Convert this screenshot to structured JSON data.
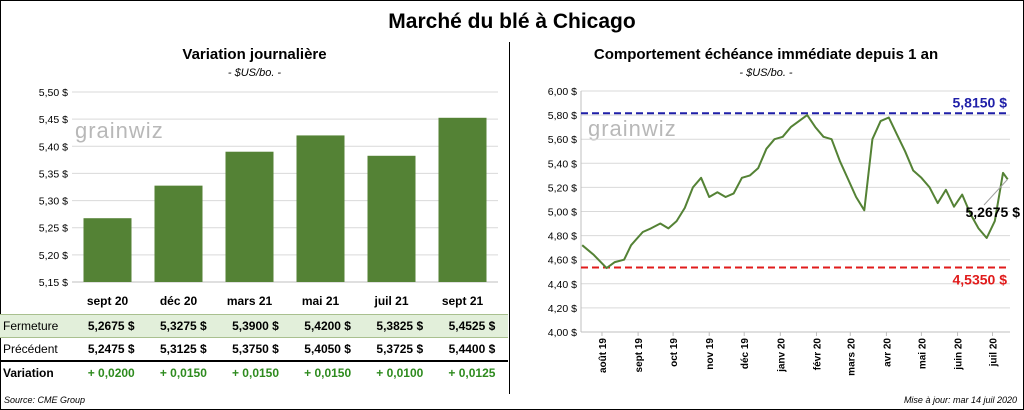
{
  "title": "Marché du blé à Chicago",
  "source": "Source: CME Group",
  "update": "Mise à jour: mar 14 juil 2020",
  "watermark": "grainwiz",
  "colors": {
    "bar": "#548235",
    "line": "#548235",
    "upper": "#1f1fa8",
    "lower": "#e01b1b"
  },
  "chart_data": [
    {
      "type": "bar",
      "title": "Variation  journalière",
      "unit": "- $US/bo. -",
      "categories": [
        "sept 20",
        "déc 20",
        "mars 21",
        "mai 21",
        "juil 21",
        "sept 21"
      ],
      "values": [
        5.2675,
        5.3275,
        5.39,
        5.42,
        5.3825,
        5.4525
      ],
      "ylim": [
        5.15,
        5.5
      ],
      "yticks": [
        "5,15 $",
        "5,20 $",
        "5,25 $",
        "5,30 $",
        "5,35 $",
        "5,40 $",
        "5,45 $",
        "5,50 $"
      ],
      "grid": true,
      "table": {
        "rows": [
          {
            "label": "Fermeture",
            "values": [
              "5,2675  $",
              "5,3275  $",
              "5,3900  $",
              "5,4200  $",
              "5,3825  $",
              "5,4525  $"
            ]
          },
          {
            "label": "Précédent",
            "values": [
              "5,2475  $",
              "5,3125  $",
              "5,3750  $",
              "5,4050  $",
              "5,3725  $",
              "5,4400  $"
            ]
          },
          {
            "label": "Variation",
            "values": [
              "+ 0,0200",
              "+ 0,0150",
              "+ 0,0150",
              "+ 0,0150",
              "+ 0,0100",
              "+ 0,0125"
            ]
          }
        ]
      }
    },
    {
      "type": "line",
      "title": "Comportement  échéance immédiate depuis 1 an",
      "unit": "- $US/bo. -",
      "ylim": [
        4.0,
        6.0
      ],
      "yticks": [
        "4,00 $",
        "4,20 $",
        "4,40 $",
        "4,60 $",
        "4,80 $",
        "5,00 $",
        "5,20 $",
        "5,40 $",
        "5,60 $",
        "5,80 $",
        "6,00 $"
      ],
      "xticks": [
        "août 19",
        "sept 19",
        "oct 19",
        "nov 19",
        "déc 19",
        "janv 20",
        "févr 20",
        "mars 20",
        "avr 20",
        "mai 20",
        "juin 20",
        "juil 20"
      ],
      "grid": true,
      "x": [
        "2019-07-15",
        "2019-07-25",
        "2019-08-05",
        "2019-08-12",
        "2019-08-20",
        "2019-08-26",
        "2019-09-05",
        "2019-09-12",
        "2019-09-20",
        "2019-09-27",
        "2019-10-04",
        "2019-10-11",
        "2019-10-18",
        "2019-10-25",
        "2019-11-01",
        "2019-11-08",
        "2019-11-15",
        "2019-11-22",
        "2019-11-29",
        "2019-12-06",
        "2019-12-13",
        "2019-12-20",
        "2019-12-27",
        "2020-01-03",
        "2020-01-10",
        "2020-01-17",
        "2020-01-24",
        "2020-01-31",
        "2020-02-07",
        "2020-02-14",
        "2020-02-21",
        "2020-02-28",
        "2020-03-06",
        "2020-03-13",
        "2020-03-20",
        "2020-03-27",
        "2020-04-03",
        "2020-04-10",
        "2020-04-17",
        "2020-04-24",
        "2020-05-01",
        "2020-05-08",
        "2020-05-15",
        "2020-05-22",
        "2020-05-29",
        "2020-06-05",
        "2020-06-12",
        "2020-06-19",
        "2020-06-26",
        "2020-07-03",
        "2020-07-10",
        "2020-07-14"
      ],
      "series": [
        {
          "values": [
            4.72,
            4.64,
            4.53,
            4.58,
            4.6,
            4.72,
            4.83,
            4.86,
            4.9,
            4.86,
            4.92,
            5.03,
            5.2,
            5.28,
            5.12,
            5.16,
            5.12,
            5.15,
            5.28,
            5.3,
            5.36,
            5.52,
            5.6,
            5.62,
            5.7,
            5.75,
            5.8,
            5.7,
            5.62,
            5.6,
            5.42,
            5.27,
            5.12,
            5.01,
            5.6,
            5.75,
            5.78,
            5.64,
            5.5,
            5.34,
            5.28,
            5.2,
            5.07,
            5.18,
            5.04,
            5.14,
            4.98,
            4.86,
            4.78,
            4.92,
            5.32,
            5.2675
          ]
        }
      ],
      "hlines": [
        {
          "value": 5.815,
          "label": "5,8150 $",
          "style": "upper"
        },
        {
          "value": 4.535,
          "label": "4,5350 $",
          "style": "lower"
        }
      ],
      "last_label": "5,2675 $"
    }
  ]
}
